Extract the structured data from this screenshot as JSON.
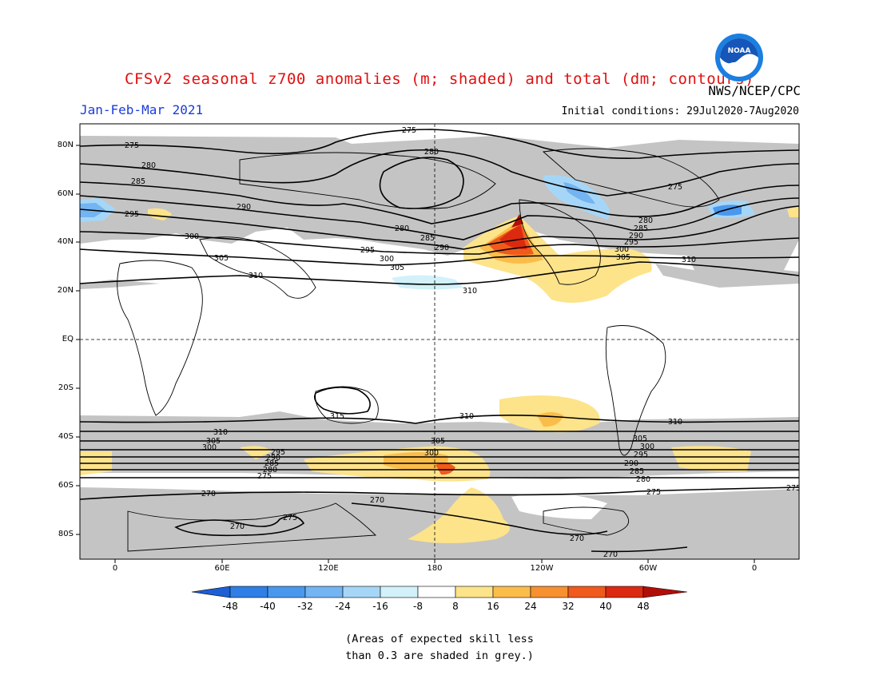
{
  "title": "CFSv2 seasonal z700 anomalies (m; shaded) and total (dm; contours)",
  "agency": "NWS/NCEP/CPC",
  "logo": {
    "text": "NOAA",
    "ring_color": "#1a7fe0",
    "center_color": "#ffffff"
  },
  "period": "Jan-Feb-Mar 2021",
  "initial_conditions": "Initial conditions: 29Jul2020-7Aug2020",
  "lat_labels": [
    "80N",
    "60N",
    "40N",
    "20N",
    "EQ",
    "20S",
    "40S",
    "60S",
    "80S"
  ],
  "lon_labels": [
    "0",
    "60E",
    "120E",
    "180",
    "120W",
    "60W",
    "0"
  ],
  "colorbar": {
    "ticks": [
      "-48",
      "-40",
      "-32",
      "-24",
      "-16",
      "-8",
      "8",
      "16",
      "24",
      "32",
      "40",
      "48"
    ],
    "colors": [
      "#1c5fd6",
      "#2f7fe6",
      "#4a97ee",
      "#73b4f2",
      "#a6d6f7",
      "#d2f1fa",
      "#ffffff",
      "#fde38a",
      "#fbbd4a",
      "#f79030",
      "#f05a1c",
      "#dc2a10",
      "#b20e08"
    ]
  },
  "contour_labels": [
    "275",
    "280",
    "285",
    "290",
    "295",
    "300",
    "305",
    "310",
    "315",
    "270"
  ],
  "footnote": {
    "line1": "(Areas of expected skill less",
    "line2": "than 0.3 are shaded in grey.)"
  }
}
